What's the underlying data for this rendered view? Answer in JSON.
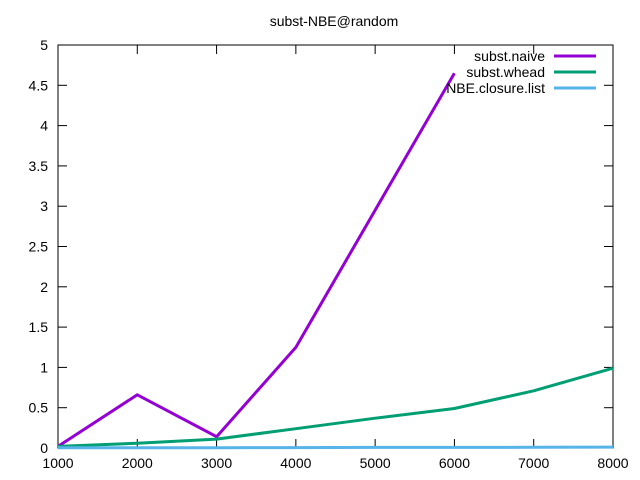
{
  "chart_data": {
    "type": "line",
    "title": "subst-NBE@random",
    "xlabel": "",
    "ylabel": "",
    "xlim": [
      1000,
      8000
    ],
    "ylim": [
      0,
      5
    ],
    "xticks": [
      1000,
      2000,
      3000,
      4000,
      5000,
      6000,
      7000,
      8000
    ],
    "yticks": [
      0,
      0.5,
      1,
      1.5,
      2,
      2.5,
      3,
      3.5,
      4,
      4.5,
      5
    ],
    "grid": false,
    "legend": "top-right",
    "series": [
      {
        "name": "subst.naive",
        "color": "#9400d3",
        "x": [
          1000,
          2000,
          3000,
          4000,
          5000,
          6000
        ],
        "y": [
          0.02,
          0.66,
          0.14,
          1.25,
          2.95,
          4.65
        ]
      },
      {
        "name": "subst.whead",
        "color": "#009e73",
        "x": [
          1000,
          2000,
          3000,
          4000,
          5000,
          6000,
          7000,
          8000
        ],
        "y": [
          0.02,
          0.06,
          0.11,
          0.24,
          0.37,
          0.49,
          0.71,
          0.99
        ]
      },
      {
        "name": "NBE.closure.list",
        "color": "#56b4e9",
        "x": [
          1000,
          2000,
          3000,
          4000,
          5000,
          6000,
          7000,
          8000
        ],
        "y": [
          0.002,
          0.003,
          0.004,
          0.005,
          0.007,
          0.008,
          0.009,
          0.011
        ]
      }
    ]
  }
}
